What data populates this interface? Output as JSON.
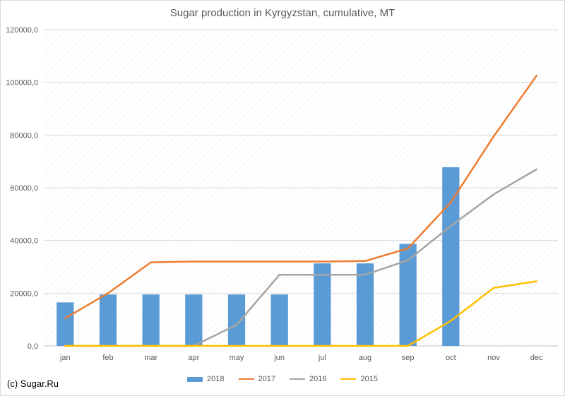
{
  "chart_data": {
    "type": "bar",
    "title": "Sugar production in Kyrgyzstan, cumulative, MT",
    "categories": [
      "jan",
      "feb",
      "mar",
      "apr",
      "may",
      "jun",
      "jul",
      "aug",
      "sep",
      "oct",
      "nov",
      "dec"
    ],
    "ylim": [
      0,
      120000
    ],
    "ytick_values": [
      0,
      20000,
      40000,
      60000,
      80000,
      100000,
      120000
    ],
    "ytick_labels": [
      "0,0",
      "20000,0",
      "40000,0",
      "60000,0",
      "80000,0",
      "100000,0",
      "120000,0"
    ],
    "grid": true,
    "legend_position": "bottom",
    "series": [
      {
        "name": "2018",
        "kind": "bar",
        "color": "#5b9bd5",
        "values": [
          16500,
          19500,
          19500,
          19500,
          19500,
          19500,
          31300,
          31300,
          38700,
          67800,
          null,
          null
        ]
      },
      {
        "name": "2017",
        "kind": "line",
        "color": "#ed7d31",
        "values": [
          10500,
          20000,
          31700,
          32000,
          32000,
          32000,
          32000,
          32200,
          37000,
          54500,
          79500,
          102500
        ]
      },
      {
        "name": "2016",
        "kind": "line",
        "color": "#a5a5a5",
        "values": [
          0,
          0,
          0,
          0,
          8000,
          27000,
          27000,
          27000,
          32500,
          45500,
          57500,
          67000
        ]
      },
      {
        "name": "2015",
        "kind": "line",
        "color": "#ffc000",
        "values": [
          0,
          0,
          0,
          0,
          0,
          0,
          0,
          0,
          0,
          9500,
          22000,
          24500
        ]
      }
    ]
  },
  "credit": "(c) Sugar.Ru"
}
